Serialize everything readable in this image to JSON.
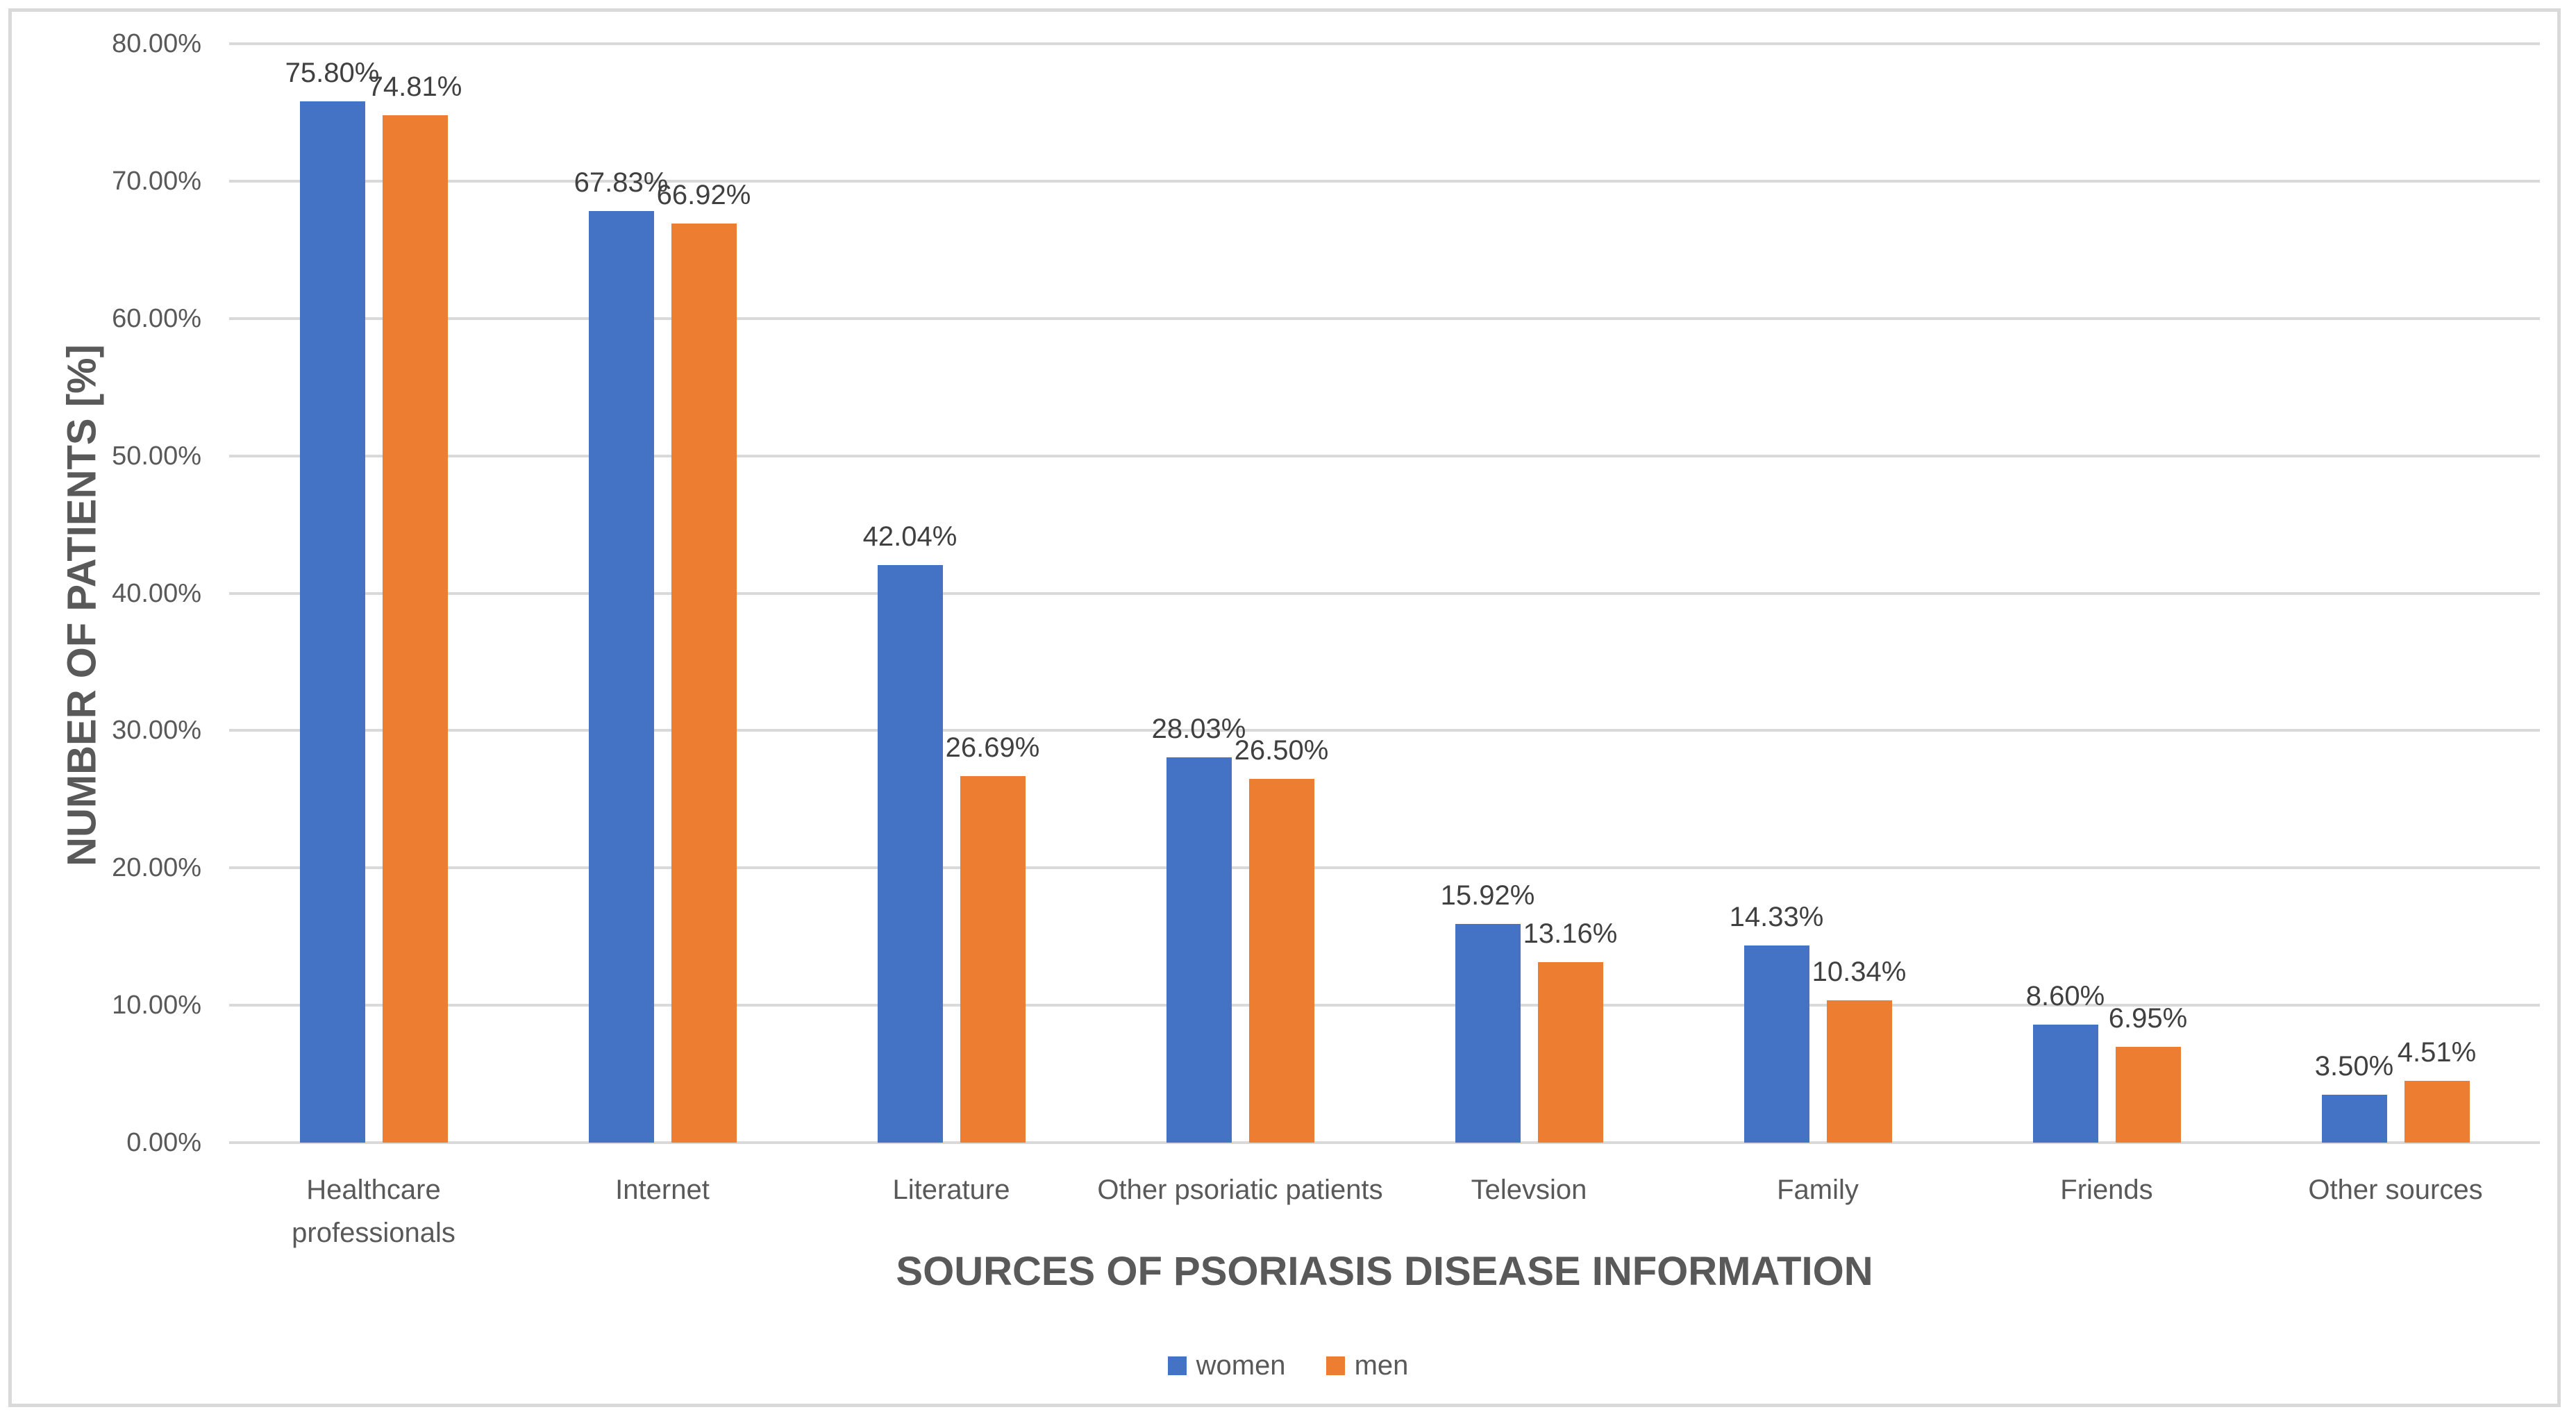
{
  "chart_data": {
    "type": "bar",
    "xlabel": "SOURCES OF PSORIASIS DISEASE INFORMATION",
    "ylabel": "NUMBER OF PATIENTS [%]",
    "categories": [
      {
        "label": "Healthcare professionals",
        "lines": [
          "Healthcare",
          "professionals"
        ]
      },
      {
        "label": "Internet",
        "lines": [
          "Internet"
        ]
      },
      {
        "label": "Literature",
        "lines": [
          "Literature"
        ]
      },
      {
        "label": "Other psoriatic patients",
        "lines": [
          "Other psoriatic patients"
        ]
      },
      {
        "label": "Televsion",
        "lines": [
          "Televsion"
        ]
      },
      {
        "label": "Family",
        "lines": [
          "Family"
        ]
      },
      {
        "label": "Friends",
        "lines": [
          "Friends"
        ]
      },
      {
        "label": "Other sources",
        "lines": [
          "Other sources"
        ]
      }
    ],
    "series": [
      {
        "name": "women",
        "color": "#4472C4",
        "values": [
          75.8,
          67.83,
          42.04,
          28.03,
          15.92,
          14.33,
          8.6,
          3.5
        ],
        "labels": [
          "75.80%",
          "67.83%",
          "42.04%",
          "28.03%",
          "15.92%",
          "14.33%",
          "8.60%",
          "3.50%"
        ]
      },
      {
        "name": "men",
        "color": "#ED7D31",
        "values": [
          74.81,
          66.92,
          26.69,
          26.5,
          13.16,
          10.34,
          6.95,
          4.51
        ],
        "labels": [
          "74.81%",
          "66.92%",
          "26.69%",
          "26.50%",
          "13.16%",
          "10.34%",
          "6.95%",
          "4.51%"
        ]
      }
    ],
    "y_axis": {
      "min": 0,
      "max": 80,
      "step": 10,
      "tick_labels": [
        "0.00%",
        "10.00%",
        "20.00%",
        "30.00%",
        "40.00%",
        "50.00%",
        "60.00%",
        "70.00%",
        "80.00%"
      ]
    },
    "grid": true,
    "legend_position": "bottom",
    "colors": {
      "grid": "#D9D9D9",
      "frame_border": "#D9D9D9",
      "axis_text": "#595959",
      "data_label_text": "#404040"
    }
  }
}
